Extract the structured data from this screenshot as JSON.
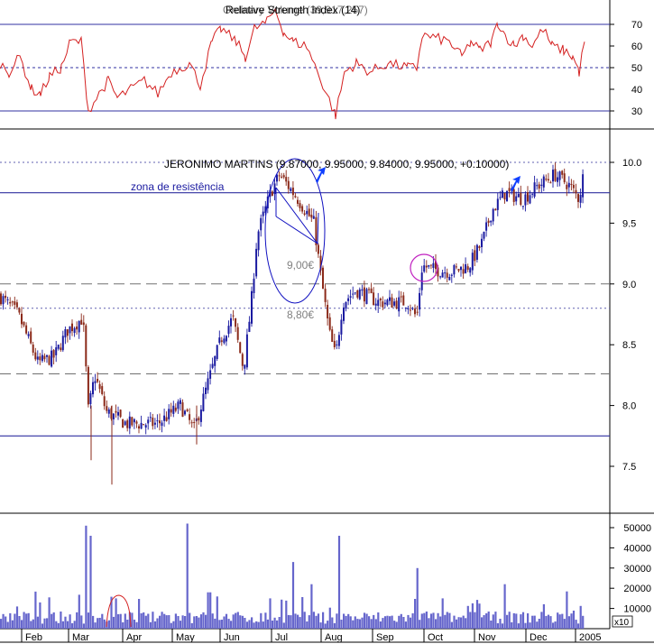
{
  "rsi_panel": {
    "title": "Relative Strength Index (14)",
    "overlay_text": "Ordinary Volume (39,917,257)",
    "ticks": [
      30,
      40,
      50,
      60,
      70
    ],
    "upper_band": 70,
    "mid_line": 50,
    "lower_band": 30
  },
  "price_panel": {
    "title": "JERONIMO MARTINS (9.87000, 9.95000, 9.84000, 9.95000, +0.10000)",
    "ticks": [
      "7.5",
      "8.0",
      "8.5",
      "9.0",
      "9.5",
      "10.0"
    ],
    "annotations": {
      "resistance_label": "zona de resistência",
      "level_900": "9,00€",
      "level_880": "8,80€"
    },
    "levels": {
      "resistance": 9.75,
      "top_dotted": 10.0,
      "dashed_900": 9.0,
      "dotted_880": 8.8,
      "dashed_826": 8.26,
      "support": 7.75
    }
  },
  "volume_panel": {
    "ticks": [
      "10000",
      "20000",
      "30000",
      "40000",
      "50000"
    ],
    "multiplier": "x10"
  },
  "x_axis": {
    "months": [
      "Feb",
      "Mar",
      "Apr",
      "May",
      "Jun",
      "Jul",
      "Aug",
      "Sep",
      "Oct",
      "Nov",
      "Dec",
      "2005"
    ]
  },
  "colors": {
    "up": "#1a1aa0",
    "down": "#8b2a1a",
    "rsi_line": "#d42020",
    "level_line": "#3030a0",
    "ellipse": "#1010c0",
    "circle": "#c020c0",
    "arrow": "#1040ff",
    "volume": "#6666cc",
    "annotation_blue": "#1a1aa0",
    "annotation_grey": "#808080"
  },
  "chart_data": {
    "type": "candlestick",
    "title": "JERONIMO MARTINS (9.87000, 9.95000, 9.84000, 9.95000, +0.10000)",
    "x_range": [
      "2004-01",
      "2004-12"
    ],
    "price_range": [
      7.2,
      10.3
    ],
    "close_path": [
      [
        "Jan",
        8.9
      ],
      [
        "Feb start",
        8.75
      ],
      [
        "Feb mid",
        8.35
      ],
      [
        "Feb end",
        8.4
      ],
      [
        "Mar start",
        8.7
      ],
      [
        "Mar mid",
        7.95
      ],
      [
        "Mar end",
        7.85
      ],
      [
        "Apr",
        7.85
      ],
      [
        "May start",
        7.95
      ],
      [
        "May mid",
        7.8
      ],
      [
        "Jun start",
        8.5
      ],
      [
        "Jun mid",
        8.7
      ],
      [
        "Jun end",
        8.4
      ],
      [
        "Jul start",
        9.9
      ],
      [
        "Jul mid",
        9.7
      ],
      [
        "Jul end",
        9.3
      ],
      [
        "Aug start",
        8.4
      ],
      [
        "Aug mid",
        8.9
      ],
      [
        "Sep",
        8.85
      ],
      [
        "Sep end",
        8.75
      ],
      [
        "Oct start",
        9.1
      ],
      [
        "Oct end",
        9.1
      ],
      [
        "Nov start",
        9.6
      ],
      [
        "Nov mid",
        9.8
      ],
      [
        "Dec",
        9.8
      ],
      [
        "Dec end",
        9.95
      ]
    ],
    "rsi": {
      "name": "Relative Strength Index (14)",
      "range": [
        20,
        80
      ],
      "path": [
        [
          "Jan",
          50
        ],
        [
          "Feb mid",
          38
        ],
        [
          "Mar start",
          62
        ],
        [
          "Mar mid",
          30
        ],
        [
          "Apr",
          40
        ],
        [
          "May",
          44
        ],
        [
          "Jun start",
          68
        ],
        [
          "Jul start",
          77
        ],
        [
          "Jul end",
          55
        ],
        [
          "Aug start",
          28
        ],
        [
          "Aug mid",
          48
        ],
        [
          "Sep",
          50
        ],
        [
          "Oct start",
          65
        ],
        [
          "Oct end",
          55
        ],
        [
          "Nov start",
          70
        ],
        [
          "Nov end",
          60
        ],
        [
          "Dec mid",
          65
        ],
        [
          "Dec end",
          48
        ]
      ]
    },
    "volume": {
      "unit_multiplier": 10,
      "max": 52000,
      "typical": 6000,
      "spikes": [
        [
          "Mar start",
          51000
        ],
        [
          "Mar end",
          15000
        ],
        [
          "May start",
          52000
        ],
        [
          "Jul mid",
          33000
        ],
        [
          "Aug start",
          46000
        ],
        [
          "Sep end",
          30000
        ],
        [
          "Nov",
          22000
        ]
      ]
    }
  }
}
